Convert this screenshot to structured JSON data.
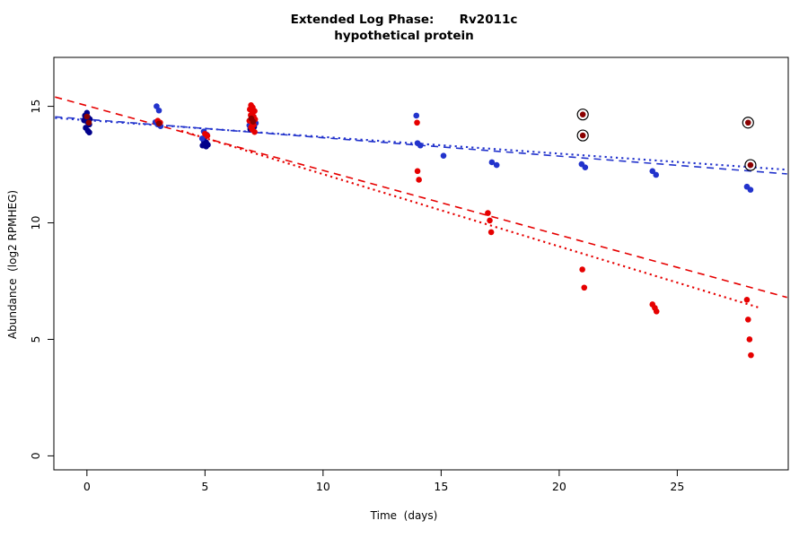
{
  "title": {
    "line1": "Extended Log Phase:      Rv2011c",
    "line2": "hypothetical protein"
  },
  "chart_data": {
    "type": "scatter",
    "title": "Extended Log Phase: Rv2011c — hypothetical protein",
    "xlabel": "Time  (days)",
    "ylabel": "Abundance  (log2 RPMHEG)",
    "xlim": [
      -1.4,
      29.7
    ],
    "ylim": [
      -0.6,
      17.1
    ],
    "xticks": [
      0,
      5,
      10,
      15,
      20,
      25
    ],
    "yticks": [
      0,
      5,
      10,
      15
    ],
    "grid": false,
    "legend": "none",
    "frame_color": "#000000",
    "series": [
      {
        "name": "navy-points",
        "color": "#00008B",
        "points": [
          [
            0.0,
            14.72
          ],
          [
            -0.08,
            14.6
          ],
          [
            0.05,
            14.52
          ],
          [
            0.12,
            14.45
          ],
          [
            -0.12,
            14.4
          ],
          [
            0.02,
            14.33
          ],
          [
            0.1,
            14.22
          ],
          [
            -0.05,
            14.08
          ],
          [
            0.04,
            13.95
          ],
          [
            0.1,
            13.88
          ],
          [
            4.95,
            13.52
          ],
          [
            5.05,
            13.45
          ],
          [
            5.0,
            13.4
          ],
          [
            5.12,
            13.35
          ],
          [
            4.9,
            13.32
          ],
          [
            5.05,
            13.28
          ],
          [
            7.0,
            14.22
          ],
          [
            7.08,
            14.12
          ],
          [
            6.92,
            14.02
          ]
        ]
      },
      {
        "name": "blue-points",
        "color": "#2233CC",
        "points": [
          [
            2.95,
            15.0
          ],
          [
            3.05,
            14.82
          ],
          [
            2.9,
            14.32
          ],
          [
            3.0,
            14.22
          ],
          [
            3.12,
            14.15
          ],
          [
            4.95,
            13.92
          ],
          [
            5.08,
            13.78
          ],
          [
            4.88,
            13.62
          ],
          [
            7.05,
            14.35
          ],
          [
            7.15,
            14.28
          ],
          [
            6.88,
            14.18
          ],
          [
            13.95,
            14.6
          ],
          [
            14.0,
            13.42
          ],
          [
            14.12,
            13.32
          ],
          [
            15.1,
            12.88
          ],
          [
            17.15,
            12.6
          ],
          [
            17.35,
            12.48
          ],
          [
            20.95,
            12.52
          ],
          [
            21.1,
            12.38
          ],
          [
            23.95,
            12.22
          ],
          [
            24.1,
            12.06
          ],
          [
            27.95,
            11.55
          ],
          [
            28.1,
            11.42
          ]
        ]
      },
      {
        "name": "red-points",
        "color": "#E60000",
        "points": [
          [
            3.0,
            14.38
          ],
          [
            3.1,
            14.3
          ],
          [
            5.0,
            13.82
          ],
          [
            5.1,
            13.74
          ],
          [
            6.95,
            15.05
          ],
          [
            7.02,
            14.95
          ],
          [
            6.9,
            14.87
          ],
          [
            7.1,
            14.8
          ],
          [
            7.0,
            14.72
          ],
          [
            6.94,
            14.62
          ],
          [
            7.06,
            14.56
          ],
          [
            7.0,
            14.5
          ],
          [
            7.12,
            14.44
          ],
          [
            6.88,
            14.38
          ],
          [
            7.0,
            14.3
          ],
          [
            7.06,
            14.2
          ],
          [
            6.95,
            14.1
          ],
          [
            7.0,
            14.0
          ],
          [
            7.1,
            13.9
          ],
          [
            13.98,
            14.3
          ],
          [
            14.0,
            12.22
          ],
          [
            14.06,
            11.85
          ],
          [
            16.98,
            10.42
          ],
          [
            17.06,
            10.1
          ],
          [
            17.12,
            9.6
          ],
          [
            20.98,
            8.0
          ],
          [
            21.06,
            7.22
          ],
          [
            23.95,
            6.5
          ],
          [
            24.05,
            6.35
          ],
          [
            24.12,
            6.2
          ],
          [
            27.95,
            6.7
          ],
          [
            28.0,
            5.85
          ],
          [
            28.06,
            5.0
          ],
          [
            28.12,
            4.32
          ]
        ]
      },
      {
        "name": "darkred-points",
        "color": "#8B0000",
        "points": [
          [
            0.0,
            14.56
          ],
          [
            0.08,
            14.3
          ],
          [
            3.05,
            14.26
          ],
          [
            6.96,
            14.48
          ],
          [
            7.04,
            14.34
          ]
        ]
      },
      {
        "name": "circled-outlier-points",
        "color": "#8B0000",
        "circled": true,
        "ring_color": "#000000",
        "points": [
          [
            21.0,
            14.65
          ],
          [
            21.0,
            13.75
          ],
          [
            28.0,
            14.3
          ],
          [
            28.1,
            12.48
          ]
        ]
      }
    ],
    "trend_lines": [
      {
        "name": "red-dashed-fit",
        "color": "#E60000",
        "style": "dashed",
        "from": [
          -1.35,
          15.4
        ],
        "to": [
          29.65,
          6.8
        ]
      },
      {
        "name": "red-dotted-fit",
        "color": "#E60000",
        "style": "dotted",
        "from": [
          4.0,
          13.95
        ],
        "to": [
          28.5,
          6.35
        ]
      },
      {
        "name": "blue-dashed-fit",
        "color": "#2233CC",
        "style": "dashed",
        "from": [
          -1.35,
          14.55
        ],
        "to": [
          29.65,
          12.1
        ]
      },
      {
        "name": "blue-dotted-fit",
        "color": "#2233CC",
        "style": "dotted",
        "from": [
          -1.35,
          14.5
        ],
        "to": [
          29.65,
          12.28
        ]
      }
    ]
  }
}
